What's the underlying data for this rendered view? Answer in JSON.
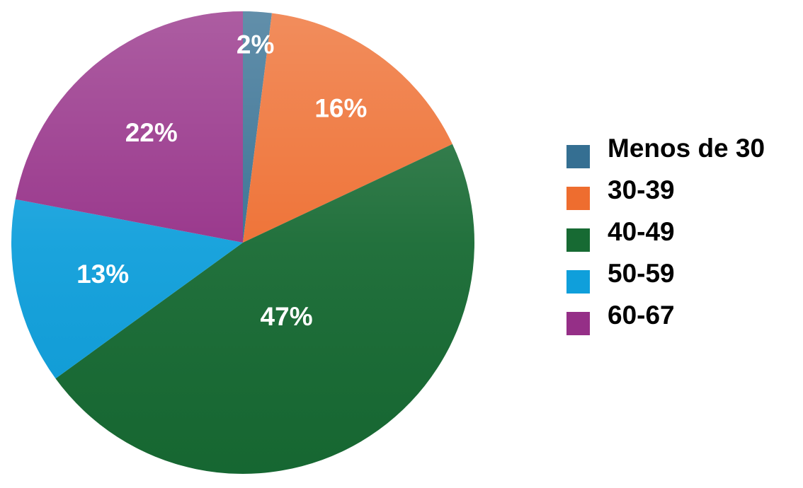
{
  "chart_data": {
    "type": "pie",
    "title": "",
    "start": "top",
    "direction": "clockwise",
    "categories": [
      "Menos de 30",
      "30-39",
      "40-49",
      "50-59",
      "60-67"
    ],
    "values": [
      2,
      16,
      47,
      13,
      22
    ],
    "data_labels": [
      "2%",
      "16%",
      "47%",
      "13%",
      "22%"
    ],
    "colors": [
      "#356f92",
      "#ee6d2f",
      "#176a33",
      "#0f9fdb",
      "#952f87"
    ],
    "legend": {
      "placement": "right",
      "entries": [
        "Menos de 30",
        "30-39",
        "40-49",
        "50-59",
        "60-67"
      ]
    }
  }
}
